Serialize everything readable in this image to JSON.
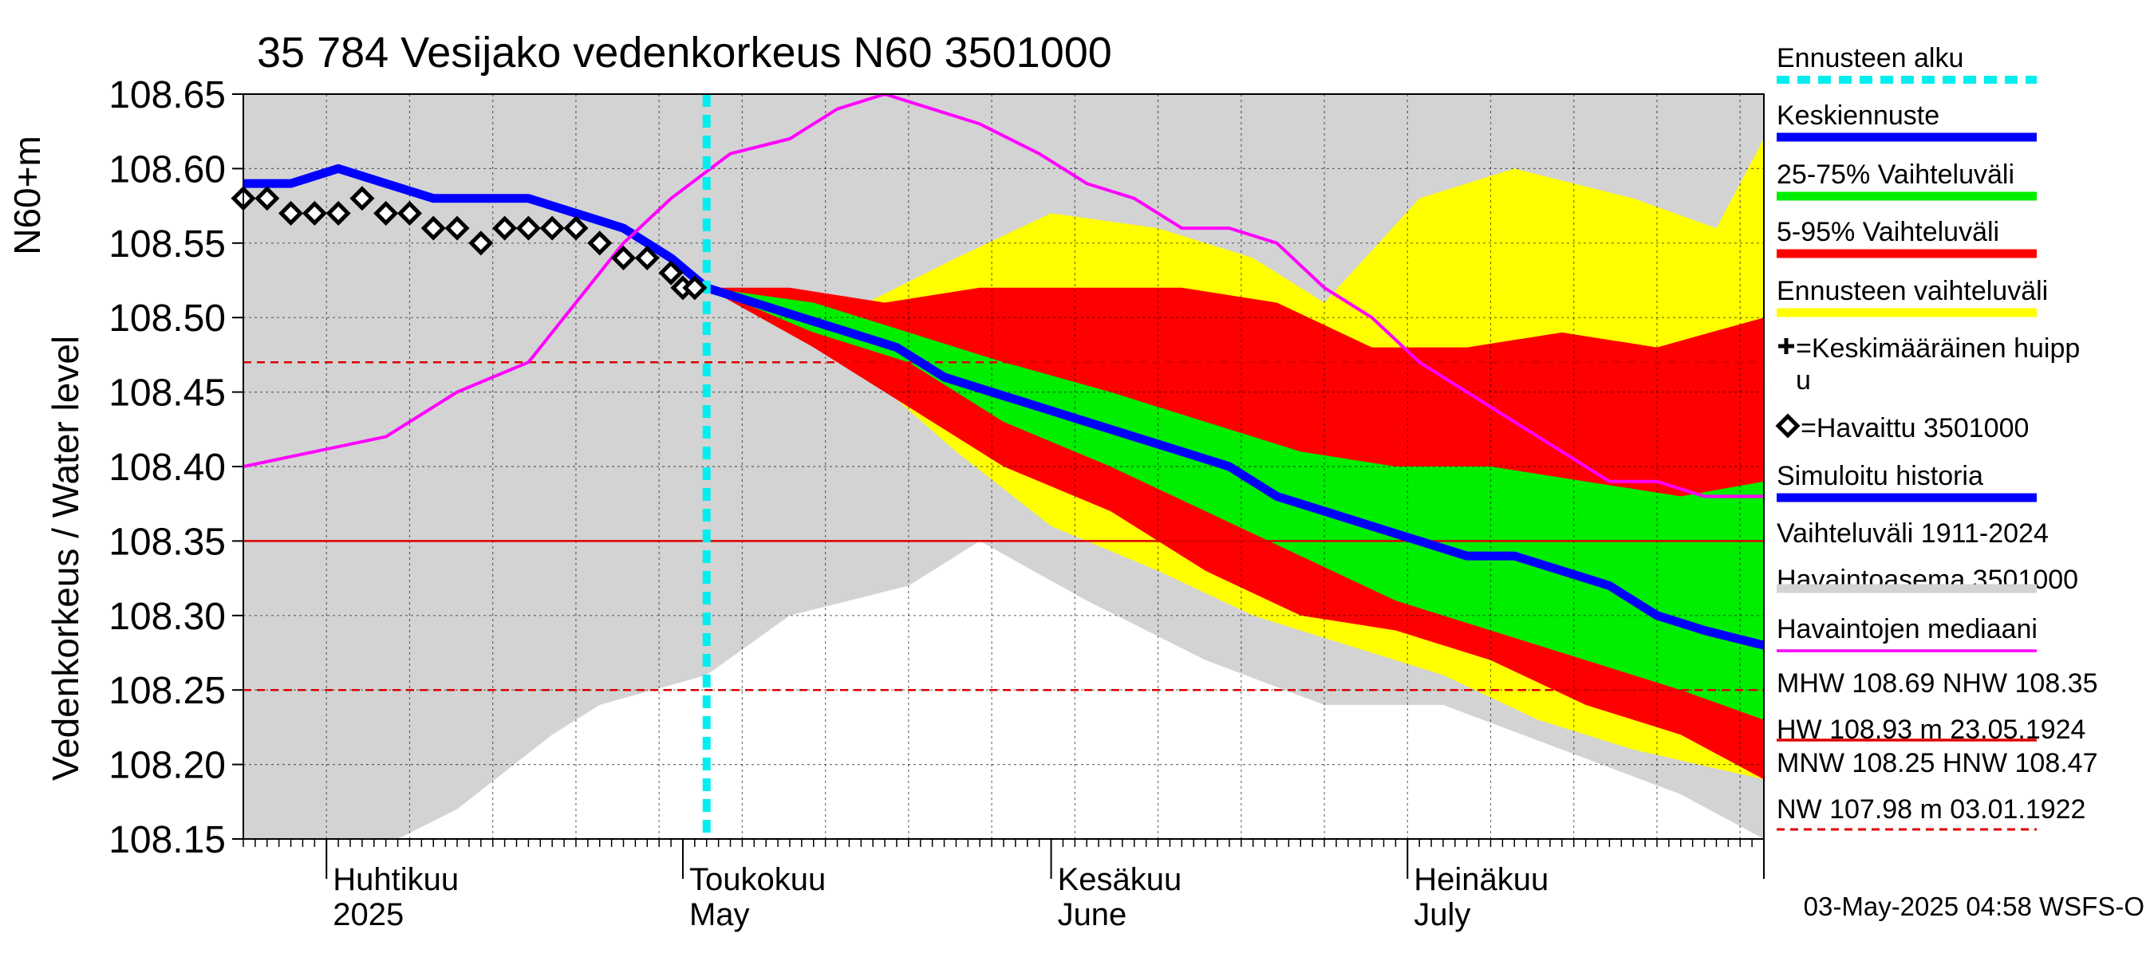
{
  "chart_data": {
    "type": "area",
    "title": "35 784 Vesijako vedenkorkeus N60 3501000",
    "ylabel_left": "Vedenkorkeus / Water level",
    "ylabel_unit": "N60+m",
    "ylim": [
      108.15,
      108.65
    ],
    "y_ticks": [
      "108.65",
      "108.60",
      "108.55",
      "108.50",
      "108.45",
      "108.40",
      "108.35",
      "108.30",
      "108.25",
      "108.20",
      "108.15"
    ],
    "x_range": [
      "2025-03-25",
      "2025-07-31"
    ],
    "x_month_labels": [
      {
        "date": "2025-04-01",
        "fi": "Huhtikuu",
        "en": "2025"
      },
      {
        "date": "2025-05-01",
        "fi": "Toukokuu",
        "en": "May"
      },
      {
        "date": "2025-06-01",
        "fi": "Kesäkuu",
        "en": "June"
      },
      {
        "date": "2025-07-01",
        "fi": "Heinäkuu",
        "en": "July"
      }
    ],
    "forecast_start": "2025-05-03",
    "reference_lines": [
      {
        "name": "NHW",
        "value": 108.35,
        "style": "solid",
        "color": "#dd0000"
      },
      {
        "name": "HNW",
        "value": 108.47,
        "style": "dashed",
        "color": "#dd0000"
      },
      {
        "name": "MNW",
        "value": 108.25,
        "style": "dashed",
        "color": "#dd0000"
      }
    ],
    "series": [
      {
        "name": "Vaihteluväli 1911-2024 Havaintoasema 3501000",
        "color": "#d3d3d3",
        "upper": [
          [
            "2025-03-25",
            108.65
          ],
          [
            "2025-05-03",
            108.65
          ],
          [
            "2025-06-10",
            108.65
          ],
          [
            "2025-07-31",
            108.65
          ]
        ],
        "lower": [
          [
            "2025-03-25",
            108.15
          ],
          [
            "2025-04-07",
            108.15
          ],
          [
            "2025-04-12",
            108.17
          ],
          [
            "2025-04-20",
            108.22
          ],
          [
            "2025-04-24",
            108.24
          ],
          [
            "2025-05-03",
            108.26
          ],
          [
            "2025-05-10",
            108.3
          ],
          [
            "2025-05-20",
            108.32
          ],
          [
            "2025-05-26",
            108.35
          ],
          [
            "2025-06-04",
            108.31
          ],
          [
            "2025-06-14",
            108.27
          ],
          [
            "2025-06-24",
            108.24
          ],
          [
            "2025-07-04",
            108.24
          ],
          [
            "2025-07-14",
            108.21
          ],
          [
            "2025-07-24",
            108.18
          ],
          [
            "2025-07-31",
            108.15
          ]
        ]
      },
      {
        "name": "Ennusteen vaihteluväli",
        "color": "#ffff00",
        "upper": [
          [
            "2025-05-03",
            108.52
          ],
          [
            "2025-05-14",
            108.5
          ],
          [
            "2025-05-24",
            108.54
          ],
          [
            "2025-06-01",
            108.57
          ],
          [
            "2025-06-10",
            108.56
          ],
          [
            "2025-06-18",
            108.54
          ],
          [
            "2025-06-24",
            108.51
          ],
          [
            "2025-07-02",
            108.58
          ],
          [
            "2025-07-10",
            108.6
          ],
          [
            "2025-07-20",
            108.58
          ],
          [
            "2025-07-27",
            108.56
          ],
          [
            "2025-07-31",
            108.62
          ]
        ],
        "lower": [
          [
            "2025-05-03",
            108.52
          ],
          [
            "2025-05-14",
            108.48
          ],
          [
            "2025-05-24",
            108.41
          ],
          [
            "2025-06-01",
            108.36
          ],
          [
            "2025-06-10",
            108.33
          ],
          [
            "2025-06-18",
            108.3
          ],
          [
            "2025-06-26",
            108.28
          ],
          [
            "2025-07-04",
            108.26
          ],
          [
            "2025-07-12",
            108.23
          ],
          [
            "2025-07-20",
            108.21
          ],
          [
            "2025-07-31",
            108.19
          ]
        ]
      },
      {
        "name": "5-95% Vaihteluväli",
        "color": "#ff0000",
        "upper": [
          [
            "2025-05-03",
            108.52
          ],
          [
            "2025-05-10",
            108.52
          ],
          [
            "2025-05-18",
            108.51
          ],
          [
            "2025-05-26",
            108.52
          ],
          [
            "2025-06-04",
            108.52
          ],
          [
            "2025-06-12",
            108.52
          ],
          [
            "2025-06-20",
            108.51
          ],
          [
            "2025-06-28",
            108.48
          ],
          [
            "2025-07-06",
            108.48
          ],
          [
            "2025-07-14",
            108.49
          ],
          [
            "2025-07-22",
            108.48
          ],
          [
            "2025-07-31",
            108.5
          ]
        ],
        "lower": [
          [
            "2025-05-03",
            108.52
          ],
          [
            "2025-05-12",
            108.48
          ],
          [
            "2025-05-20",
            108.44
          ],
          [
            "2025-05-28",
            108.4
          ],
          [
            "2025-06-06",
            108.37
          ],
          [
            "2025-06-14",
            108.33
          ],
          [
            "2025-06-22",
            108.3
          ],
          [
            "2025-06-30",
            108.29
          ],
          [
            "2025-07-08",
            108.27
          ],
          [
            "2025-07-16",
            108.24
          ],
          [
            "2025-07-24",
            108.22
          ],
          [
            "2025-07-31",
            108.19
          ]
        ]
      },
      {
        "name": "25-75% Vaihteluväli",
        "color": "#00ee00",
        "upper": [
          [
            "2025-05-03",
            108.52
          ],
          [
            "2025-05-12",
            108.51
          ],
          [
            "2025-05-20",
            108.49
          ],
          [
            "2025-05-28",
            108.47
          ],
          [
            "2025-06-06",
            108.45
          ],
          [
            "2025-06-14",
            108.43
          ],
          [
            "2025-06-22",
            108.41
          ],
          [
            "2025-06-30",
            108.4
          ],
          [
            "2025-07-08",
            108.4
          ],
          [
            "2025-07-16",
            108.39
          ],
          [
            "2025-07-24",
            108.38
          ],
          [
            "2025-07-31",
            108.39
          ]
        ],
        "lower": [
          [
            "2025-05-03",
            108.52
          ],
          [
            "2025-05-12",
            108.49
          ],
          [
            "2025-05-20",
            108.47
          ],
          [
            "2025-05-28",
            108.43
          ],
          [
            "2025-06-06",
            108.4
          ],
          [
            "2025-06-14",
            108.37
          ],
          [
            "2025-06-22",
            108.34
          ],
          [
            "2025-06-30",
            108.31
          ],
          [
            "2025-07-08",
            108.29
          ],
          [
            "2025-07-16",
            108.27
          ],
          [
            "2025-07-24",
            108.25
          ],
          [
            "2025-07-31",
            108.23
          ]
        ]
      },
      {
        "name": "Keskiennuste",
        "color": "#0000ff",
        "points": [
          [
            "2025-05-03",
            108.52
          ],
          [
            "2025-05-07",
            108.51
          ],
          [
            "2025-05-11",
            108.5
          ],
          [
            "2025-05-15",
            108.49
          ],
          [
            "2025-05-19",
            108.48
          ],
          [
            "2025-05-23",
            108.46
          ],
          [
            "2025-05-27",
            108.45
          ],
          [
            "2025-05-31",
            108.44
          ],
          [
            "2025-06-04",
            108.43
          ],
          [
            "2025-06-08",
            108.42
          ],
          [
            "2025-06-12",
            108.41
          ],
          [
            "2025-06-16",
            108.4
          ],
          [
            "2025-06-20",
            108.38
          ],
          [
            "2025-06-24",
            108.37
          ],
          [
            "2025-06-28",
            108.36
          ],
          [
            "2025-07-02",
            108.35
          ],
          [
            "2025-07-06",
            108.34
          ],
          [
            "2025-07-10",
            108.34
          ],
          [
            "2025-07-14",
            108.33
          ],
          [
            "2025-07-18",
            108.32
          ],
          [
            "2025-07-22",
            108.3
          ],
          [
            "2025-07-26",
            108.29
          ],
          [
            "2025-07-31",
            108.28
          ]
        ]
      },
      {
        "name": "Simuloitu historia",
        "color": "#0000ff",
        "points": [
          [
            "2025-03-25",
            108.59
          ],
          [
            "2025-03-29",
            108.59
          ],
          [
            "2025-04-02",
            108.6
          ],
          [
            "2025-04-06",
            108.59
          ],
          [
            "2025-04-10",
            108.58
          ],
          [
            "2025-04-14",
            108.58
          ],
          [
            "2025-04-18",
            108.58
          ],
          [
            "2025-04-22",
            108.57
          ],
          [
            "2025-04-26",
            108.56
          ],
          [
            "2025-04-30",
            108.54
          ],
          [
            "2025-05-03",
            108.52
          ]
        ]
      },
      {
        "name": "Havaintojen mediaani",
        "color": "#ff00ff",
        "points": [
          [
            "2025-03-25",
            108.4
          ],
          [
            "2025-03-31",
            108.41
          ],
          [
            "2025-04-06",
            108.42
          ],
          [
            "2025-04-12",
            108.45
          ],
          [
            "2025-04-18",
            108.47
          ],
          [
            "2025-04-22",
            108.51
          ],
          [
            "2025-04-26",
            108.55
          ],
          [
            "2025-04-30",
            108.58
          ],
          [
            "2025-05-05",
            108.61
          ],
          [
            "2025-05-10",
            108.62
          ],
          [
            "2025-05-14",
            108.64
          ],
          [
            "2025-05-18",
            108.65
          ],
          [
            "2025-05-22",
            108.64
          ],
          [
            "2025-05-26",
            108.63
          ],
          [
            "2025-05-31",
            108.61
          ],
          [
            "2025-06-04",
            108.59
          ],
          [
            "2025-06-08",
            108.58
          ],
          [
            "2025-06-12",
            108.56
          ],
          [
            "2025-06-16",
            108.56
          ],
          [
            "2025-06-20",
            108.55
          ],
          [
            "2025-06-24",
            108.52
          ],
          [
            "2025-06-28",
            108.5
          ],
          [
            "2025-07-02",
            108.47
          ],
          [
            "2025-07-06",
            108.45
          ],
          [
            "2025-07-10",
            108.43
          ],
          [
            "2025-07-14",
            108.41
          ],
          [
            "2025-07-18",
            108.39
          ],
          [
            "2025-07-22",
            108.39
          ],
          [
            "2025-07-26",
            108.38
          ],
          [
            "2025-07-31",
            108.38
          ]
        ]
      },
      {
        "name": "Havaittu 3501000",
        "color": "#000000",
        "marker": "diamond",
        "points": [
          [
            "2025-03-25",
            108.58
          ],
          [
            "2025-03-27",
            108.58
          ],
          [
            "2025-03-29",
            108.57
          ],
          [
            "2025-03-31",
            108.57
          ],
          [
            "2025-04-02",
            108.57
          ],
          [
            "2025-04-04",
            108.58
          ],
          [
            "2025-04-06",
            108.57
          ],
          [
            "2025-04-08",
            108.57
          ],
          [
            "2025-04-10",
            108.56
          ],
          [
            "2025-04-12",
            108.56
          ],
          [
            "2025-04-14",
            108.55
          ],
          [
            "2025-04-16",
            108.56
          ],
          [
            "2025-04-18",
            108.56
          ],
          [
            "2025-04-20",
            108.56
          ],
          [
            "2025-04-22",
            108.56
          ],
          [
            "2025-04-24",
            108.55
          ],
          [
            "2025-04-26",
            108.54
          ],
          [
            "2025-04-28",
            108.54
          ],
          [
            "2025-04-30",
            108.53
          ],
          [
            "2025-05-01",
            108.52
          ],
          [
            "2025-05-02",
            108.52
          ]
        ]
      }
    ],
    "legend": [
      {
        "label": "Ennusteen alku",
        "color": "#00eeee",
        "kind": "dotted"
      },
      {
        "label": "Keskiennuste",
        "color": "#0000ff",
        "kind": "line"
      },
      {
        "label": "25-75% Vaihteluväli",
        "color": "#00ee00",
        "kind": "line"
      },
      {
        "label": "5-95% Vaihteluväli",
        "color": "#ff0000",
        "kind": "line"
      },
      {
        "label": "Ennusteen vaihteluväli",
        "color": "#ffff00",
        "kind": "line"
      },
      {
        "label": "=Keskimääräinen huipp",
        "label2": "u",
        "kind": "cross"
      },
      {
        "label": "=Havaittu 3501000",
        "kind": "diamond"
      },
      {
        "label": "Simuloitu historia",
        "color": "#0000ff",
        "kind": "line"
      },
      {
        "label": "Vaihteluväli 1911-2024",
        "label2": " Havaintoasema 3501000",
        "color": "#d3d3d3",
        "kind": "line"
      },
      {
        "label": "Havaintojen mediaani",
        "color": "#ff00ff",
        "kind": "thinline"
      },
      {
        "label": "MHW 108.69 NHW 108.35",
        "label2": "HW 108.93 m 23.05.1924",
        "color": "#dd0000",
        "kind": "thinline"
      },
      {
        "label": "MNW 108.25 HNW 108.47",
        "label2": "NW 107.98 m 03.01.1922",
        "color": "#dd0000",
        "kind": "dashed"
      }
    ],
    "footer": "03-May-2025 04:58 WSFS-O"
  }
}
